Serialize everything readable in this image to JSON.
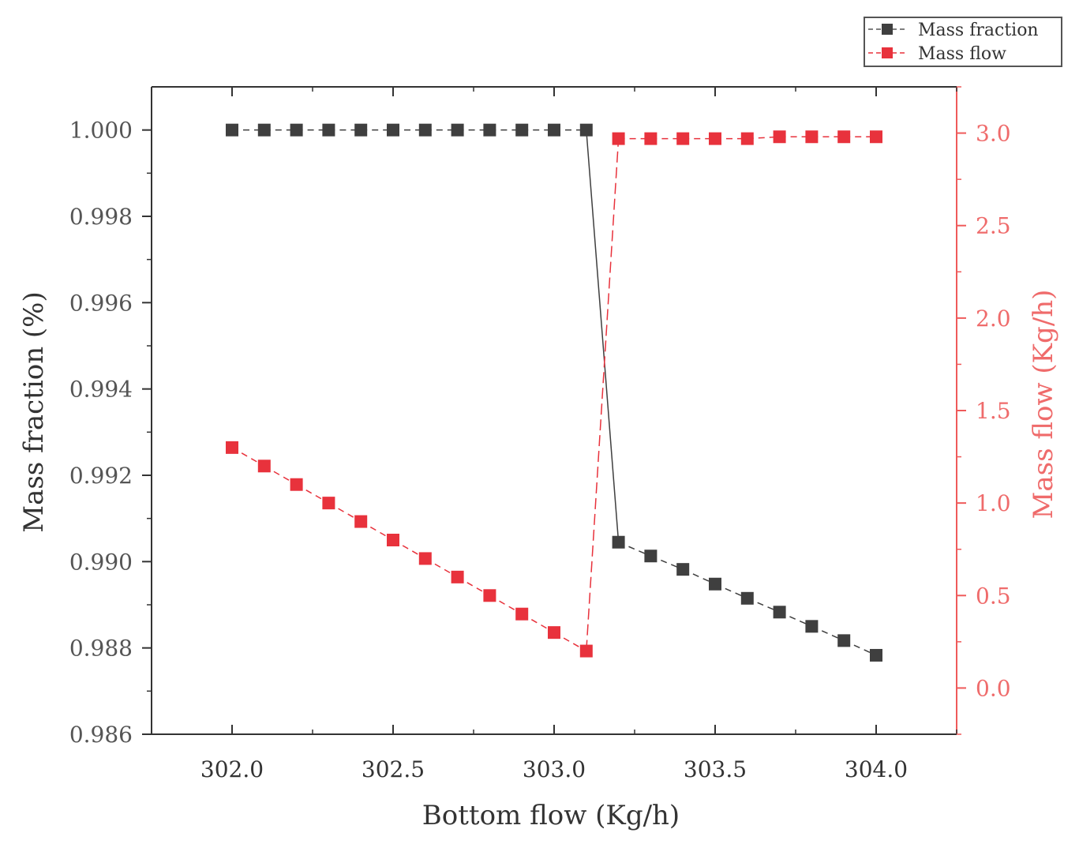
{
  "chart_data": {
    "type": "line",
    "title": "",
    "xlabel": "Bottom flow (Kg/h)",
    "ylabel_left": "Mass fraction (%)",
    "ylabel_right": "Mass flow (Kg/h)",
    "xlim": [
      301.75,
      304.25
    ],
    "ylim_left": [
      0.986,
      1.001
    ],
    "ylim_right": [
      -0.25,
      3.25
    ],
    "x_ticks": [
      "302.0",
      "302.5",
      "303.0",
      "303.5",
      "304.0"
    ],
    "x_tick_values": [
      302.0,
      302.5,
      303.0,
      303.5,
      304.0
    ],
    "y_left_ticks": [
      "0.986",
      "0.988",
      "0.990",
      "0.992",
      "0.994",
      "0.996",
      "0.998",
      "1.000"
    ],
    "y_left_tick_values": [
      0.986,
      0.988,
      0.99,
      0.992,
      0.994,
      0.996,
      0.998,
      1.0
    ],
    "y_right_ticks": [
      "0.0",
      "0.5",
      "1.0",
      "1.5",
      "2.0",
      "2.5",
      "3.0"
    ],
    "y_right_tick_values": [
      0.0,
      0.5,
      1.0,
      1.5,
      2.0,
      2.5,
      3.0
    ],
    "grid": false,
    "legend_position": "top-right",
    "series": [
      {
        "name": "Mass fraction",
        "axis": "left",
        "color": "#3f3f3f",
        "line_style": "dashed",
        "x": [
          302.0,
          302.1,
          302.2,
          302.3,
          302.4,
          302.5,
          302.6,
          302.7,
          302.8,
          302.9,
          303.0,
          303.1,
          303.2,
          303.3,
          303.4,
          303.5,
          303.6,
          303.7,
          303.8,
          303.9,
          304.0
        ],
        "values": [
          1.0,
          1.0,
          1.0,
          1.0,
          1.0,
          1.0,
          1.0,
          1.0,
          1.0,
          1.0,
          1.0,
          1.0,
          0.99045,
          0.99013,
          0.98982,
          0.98948,
          0.98915,
          0.98883,
          0.9885,
          0.98817,
          0.98783
        ]
      },
      {
        "name": "Mass flow",
        "axis": "right",
        "color": "#e8323c",
        "line_style": "dashed",
        "x": [
          302.0,
          302.1,
          302.2,
          302.3,
          302.4,
          302.5,
          302.6,
          302.7,
          302.8,
          302.9,
          303.0,
          303.1,
          303.2,
          303.3,
          303.4,
          303.5,
          303.6,
          303.7,
          303.8,
          303.9,
          304.0
        ],
        "values": [
          1.3,
          1.2,
          1.1,
          1.0,
          0.9,
          0.8,
          0.7,
          0.6,
          0.5,
          0.4,
          0.3,
          0.2,
          2.97,
          2.97,
          2.97,
          2.97,
          2.97,
          2.98,
          2.98,
          2.98,
          2.98
        ]
      }
    ]
  }
}
